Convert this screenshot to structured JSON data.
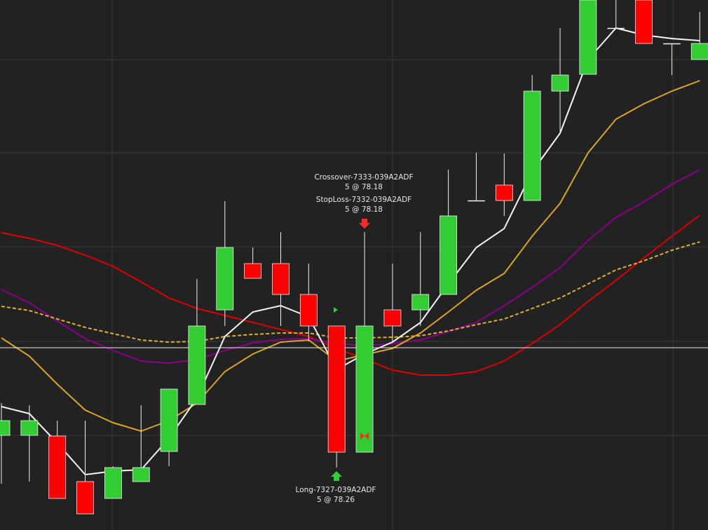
{
  "chart_data": {
    "type": "candlestick",
    "categories": [
      null,
      null,
      null,
      null,
      null,
      null,
      null,
      null,
      null,
      null,
      null,
      null,
      null,
      null,
      null,
      null,
      null,
      null,
      null,
      null,
      null,
      null,
      null,
      null,
      null,
      null
    ],
    "open": [
      78.2316,
      78.2316,
      78.2312,
      78.2052,
      78.1956,
      78.2052,
      78.2224,
      78.2492,
      78.3032,
      78.3296,
      78.3296,
      78.312,
      78.294,
      78.222,
      78.3032,
      78.3032,
      78.312,
      78.3656,
      78.3744,
      78.3656,
      78.428,
      78.4376,
      78.464,
      78.48,
      78.4552,
      78.446
    ],
    "high": [
      78.25,
      78.2488,
      78.24,
      78.24,
      78.214,
      78.2488,
      78.258,
      78.3208,
      78.3652,
      78.3388,
      78.3476,
      78.3296,
      78.294,
      78.3476,
      78.3296,
      78.3476,
      78.3832,
      78.3928,
      78.3924,
      78.4372,
      78.464,
      78.48,
      78.48,
      78.48,
      78.4552,
      78.4732
    ],
    "low": [
      78.204,
      78.2052,
      78.1956,
      78.1868,
      78.1956,
      78.2052,
      78.214,
      78.2492,
      78.294,
      78.3212,
      78.294,
      78.2852,
      78.2132,
      78.222,
      78.2852,
      78.294,
      78.312,
      78.3656,
      78.3568,
      78.3656,
      78.404,
      78.4376,
      78.464,
      78.4552,
      78.4372,
      78.446
    ],
    "close": [
      78.24,
      78.24,
      78.1956,
      78.1868,
      78.2132,
      78.2132,
      78.258,
      78.294,
      78.3388,
      78.3212,
      78.312,
      78.294,
      78.222,
      78.294,
      78.294,
      78.312,
      78.3568,
      78.3656,
      78.3656,
      78.428,
      78.4372,
      78.48,
      78.464,
      78.4552,
      78.4552,
      78.4552
    ],
    "up_color": "#32cd32",
    "down_color": "#ff0000",
    "doji_color": "#f0f0f0",
    "series": [
      {
        "color": "#e00000",
        "dashed": false,
        "values": [
          78.3472,
          78.344,
          78.34,
          78.3344,
          78.328,
          78.3192,
          78.31,
          78.304,
          78.3,
          78.296,
          78.292,
          78.288,
          78.2812,
          78.2752,
          78.2688,
          78.266,
          78.266,
          78.268,
          78.274,
          78.284,
          78.2948,
          78.308,
          78.32,
          78.3328,
          78.3452,
          78.3572
        ]
      },
      {
        "color": "#8b008b",
        "dashed": false,
        "values": [
          78.3148,
          78.3072,
          78.2968,
          78.2868,
          78.28,
          78.274,
          78.2728,
          78.2748,
          78.28,
          78.2844,
          78.2864,
          78.2868,
          78.284,
          78.2828,
          78.284,
          78.286,
          78.2908,
          78.296,
          78.3056,
          78.316,
          78.3272,
          78.3428,
          78.356,
          78.3648,
          78.3748,
          78.3832
        ]
      },
      {
        "color": "#e0b030",
        "dashed": true,
        "values": [
          78.3052,
          78.3028,
          78.298,
          78.2932,
          78.2896,
          78.286,
          78.2848,
          78.2852,
          78.288,
          78.2892,
          78.29,
          78.29,
          78.2872,
          78.2872,
          78.2876,
          78.2884,
          78.2912,
          78.2948,
          78.298,
          78.304,
          78.31,
          78.318,
          78.326,
          78.3312,
          78.3372,
          78.342
        ]
      },
      {
        "color": "#daa520",
        "dashed": false,
        "values": [
          78.2872,
          78.2768,
          78.2608,
          78.246,
          78.2388,
          78.234,
          78.24,
          78.25,
          78.268,
          78.278,
          78.2848,
          78.286,
          78.274,
          78.2776,
          78.2812,
          78.29,
          78.302,
          78.3144,
          78.324,
          78.3452,
          78.364,
          78.3928,
          78.412,
          78.4208,
          78.428,
          78.434
        ]
      },
      {
        "color": "#f5f5f5",
        "dashed": false,
        "values": [
          78.248,
          78.244,
          78.2272,
          78.2092,
          78.2112,
          78.212,
          78.23,
          78.2528,
          78.288,
          78.302,
          78.3056,
          78.2992,
          78.2692,
          78.278,
          78.2848,
          78.296,
          78.318,
          78.3388,
          78.3496,
          78.382,
          78.404,
          78.446,
          78.464,
          78.46,
          78.458,
          78.4568
        ]
      }
    ],
    "price_line": 78.2816,
    "ylim": [
      78.1776,
      78.48
    ],
    "yticks": [
      78.446,
      78.3928,
      78.3392,
      78.2852,
      78.2316
    ],
    "grid": true,
    "annotations": [
      {
        "name": "Crossover-7333-039A2ADF",
        "detail": "5 @ 78.18"
      },
      {
        "name": "StopLoss-7332-039A2ADF",
        "detail": "5 @ 78.18"
      },
      {
        "name": "Long-7327-039A2ADF",
        "detail": "5 @ 78.26"
      }
    ]
  }
}
